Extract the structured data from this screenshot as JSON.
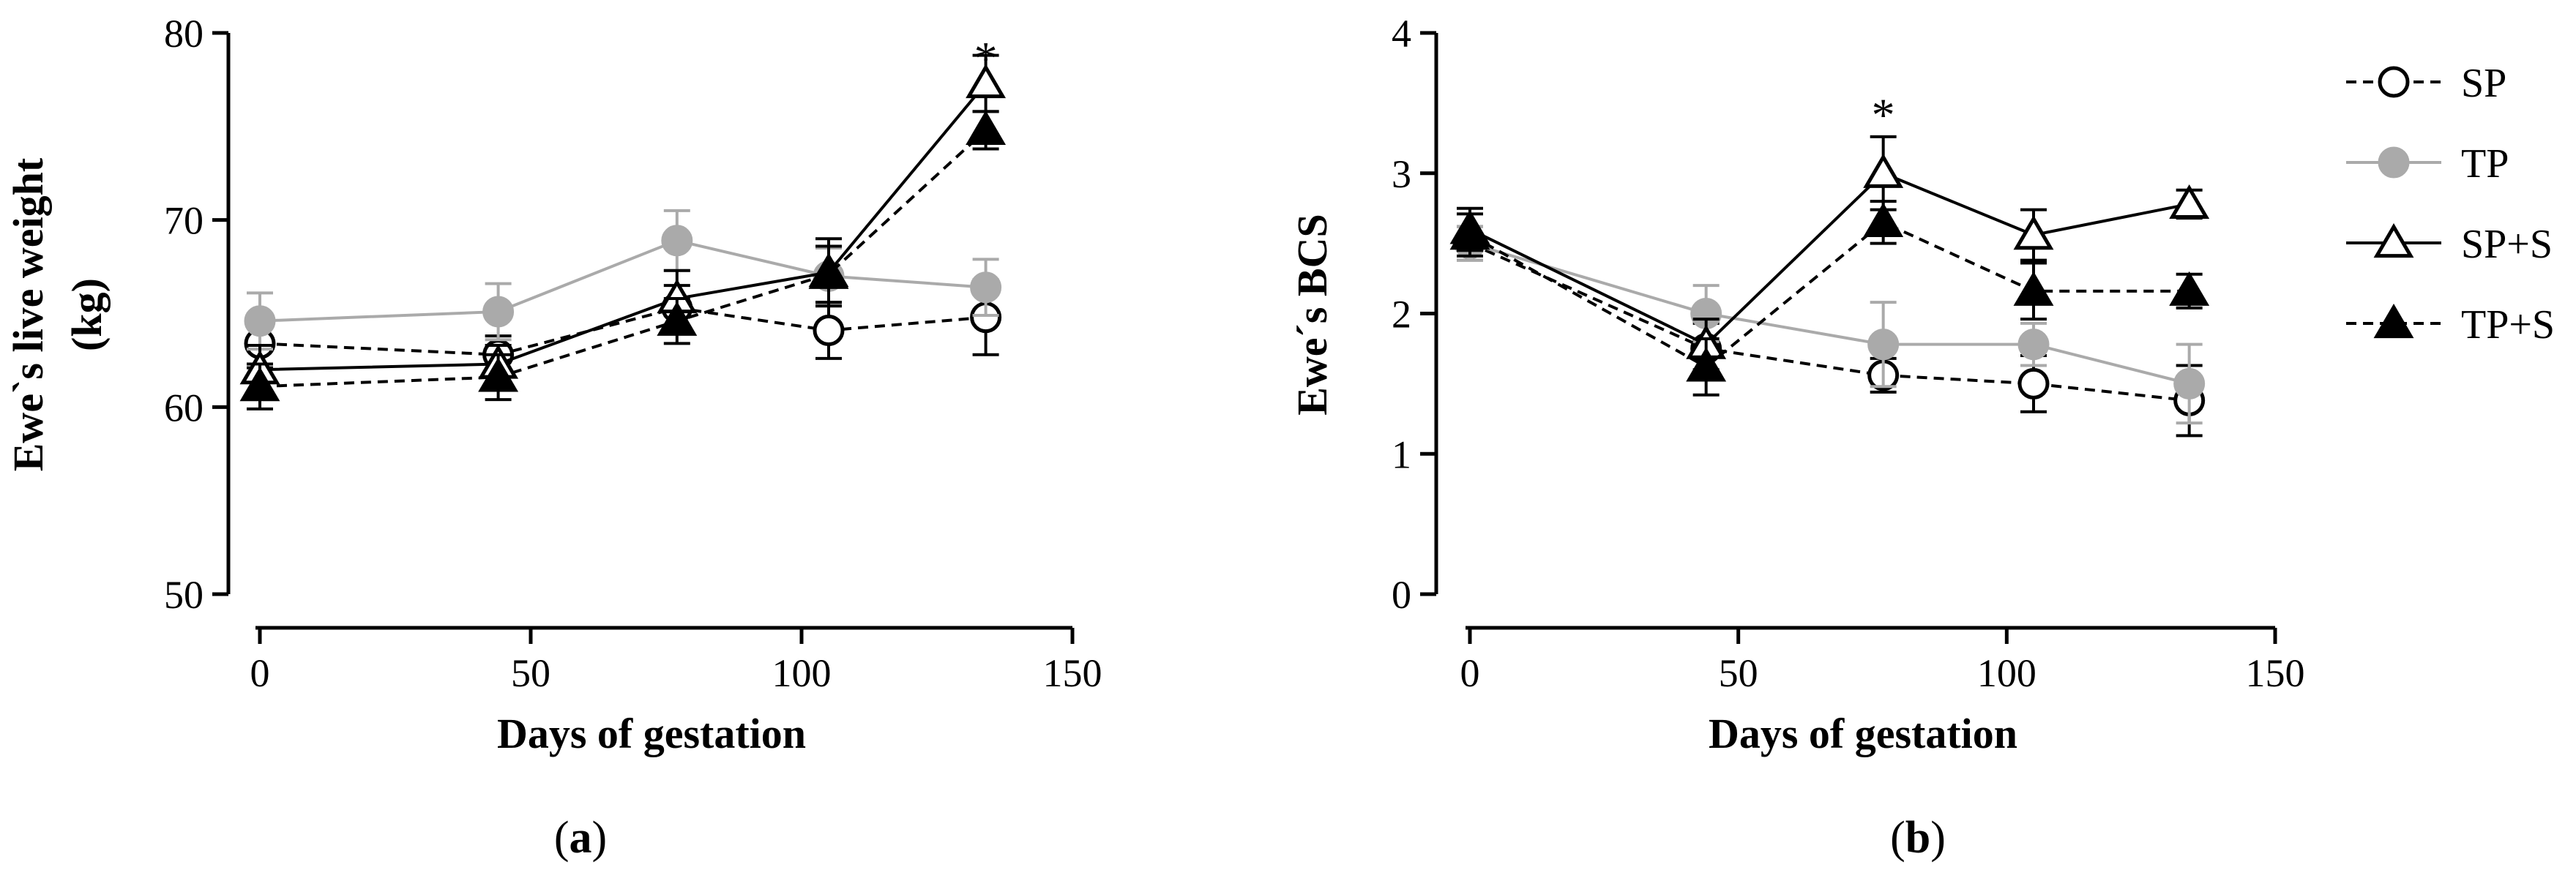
{
  "figure": {
    "legend": [
      {
        "name": "SP",
        "marker": "circle-open",
        "dash": "dashed",
        "color": "#000000"
      },
      {
        "name": "TP",
        "marker": "circle-filled",
        "dash": "solid",
        "color": "#aaaaaa"
      },
      {
        "name": "SP+S",
        "marker": "triangle-open",
        "dash": "solid",
        "color": "#000000"
      },
      {
        "name": "TP+S",
        "marker": "triangle-filled",
        "dash": "dashed",
        "color": "#000000"
      }
    ]
  },
  "chart_data": [
    {
      "type": "line",
      "panel_label": "a",
      "title": "",
      "xlabel": "Days of gestation",
      "ylabel_line1": "Ewe`s live weight",
      "ylabel_line2": "(kg)",
      "xlim": [
        0,
        150
      ],
      "ylim": [
        50,
        80
      ],
      "xticks": [
        0,
        50,
        100,
        150
      ],
      "yticks": [
        50,
        60,
        70,
        80
      ],
      "annotations": [
        {
          "text": "*",
          "x": 134,
          "y": 78.9
        }
      ],
      "series": [
        {
          "name": "SP",
          "x": [
            0,
            44,
            77,
            105,
            134
          ],
          "y": [
            63.4,
            62.8,
            65.3,
            64.1,
            64.8
          ],
          "err": [
            1.3,
            1.0,
            1.2,
            1.5,
            2.0
          ]
        },
        {
          "name": "TP",
          "x": [
            0,
            44,
            77,
            105,
            134
          ],
          "y": [
            64.6,
            65.1,
            68.9,
            67.0,
            66.4
          ],
          "err": [
            1.5,
            1.5,
            1.6,
            1.5,
            1.5
          ]
        },
        {
          "name": "SP+S",
          "x": [
            0,
            44,
            77,
            105,
            134
          ],
          "y": [
            62.0,
            62.3,
            65.8,
            67.2,
            77.3
          ],
          "err": [
            1.3,
            1.0,
            1.5,
            1.8,
            1.5
          ]
        },
        {
          "name": "TP+S",
          "x": [
            0,
            44,
            77,
            105,
            134
          ],
          "y": [
            61.1,
            61.6,
            64.6,
            67.1,
            74.8
          ],
          "err": [
            1.2,
            1.2,
            1.2,
            1.5,
            1.0
          ]
        }
      ]
    },
    {
      "type": "line",
      "panel_label": "b",
      "title": "",
      "xlabel": "Days of gestation",
      "ylabel_line1": "Ewe´s BCS",
      "ylabel_line2": "",
      "xlim": [
        0,
        150
      ],
      "ylim": [
        0,
        4
      ],
      "xticks": [
        0,
        50,
        100,
        150
      ],
      "yticks": [
        0,
        1,
        2,
        3,
        4
      ],
      "annotations": [
        {
          "text": "*",
          "x": 77,
          "y": 3.45
        }
      ],
      "series": [
        {
          "name": "SP",
          "x": [
            0,
            44,
            77,
            105,
            134
          ],
          "y": [
            2.5,
            1.75,
            1.56,
            1.5,
            1.38
          ],
          "err": [
            0.12,
            0.18,
            0.12,
            0.2,
            0.25
          ]
        },
        {
          "name": "TP",
          "x": [
            0,
            44,
            77,
            105,
            134
          ],
          "y": [
            2.5,
            2.0,
            1.78,
            1.78,
            1.5
          ],
          "err": [
            0.12,
            0.2,
            0.3,
            0.15,
            0.28
          ]
        },
        {
          "name": "SP+S",
          "x": [
            0,
            44,
            77,
            105,
            134
          ],
          "y": [
            2.6,
            1.78,
            3.0,
            2.56,
            2.78
          ],
          "err": [
            0.15,
            0.18,
            0.26,
            0.18,
            0.1
          ]
        },
        {
          "name": "TP+S",
          "x": [
            0,
            44,
            77,
            105,
            134
          ],
          "y": [
            2.56,
            1.62,
            2.65,
            2.16,
            2.16
          ],
          "err": [
            0.15,
            0.2,
            0.15,
            0.2,
            0.12
          ]
        }
      ]
    }
  ]
}
